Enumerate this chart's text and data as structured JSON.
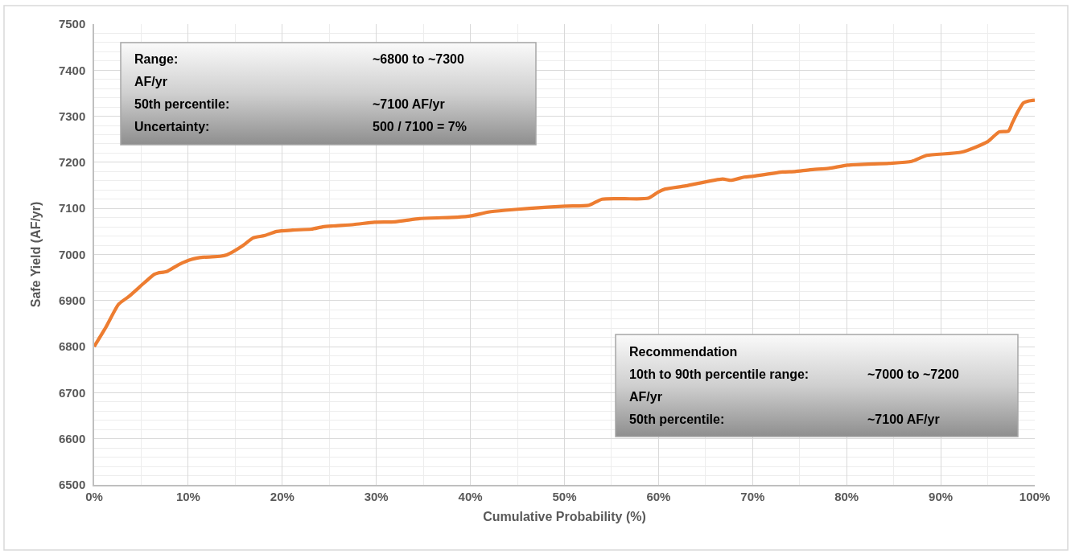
{
  "chart_data": {
    "type": "line",
    "xlabel": "Cumulative Probability (%)",
    "ylabel": "Safe Yield (AF/yr)",
    "x": [
      0,
      1.3,
      2.6,
      3.7,
      5.3,
      6.4,
      6.8,
      7.7,
      9,
      10.3,
      11.6,
      13.4,
      14.1,
      15.8,
      16.9,
      18.1,
      19.4,
      21.1,
      23.1,
      24.3,
      25.4,
      27.6,
      29.8,
      32,
      34.6,
      38.6,
      40.1,
      41.9,
      43.7,
      46.3,
      50.1,
      52.6,
      54,
      56.3,
      58.9,
      60,
      60.7,
      62.9,
      66.8,
      67.7,
      69.1,
      70.1,
      73.2,
      74.5,
      76.1,
      78.1,
      80.1,
      84.5,
      86.9,
      88.5,
      92.2,
      95,
      96.2,
      97.2,
      97.6,
      98.2,
      98.8,
      99.3,
      100
    ],
    "series": [
      {
        "color": "#ed7d31",
        "values": [
          6800,
          6844,
          6892,
          6909,
          6938,
          6957,
          6960,
          6963,
          6978,
          6989,
          6994,
          6996,
          6999,
          7019,
          7036,
          7041,
          7050,
          7053,
          7055,
          7060,
          7062,
          7065,
          7070,
          7071,
          7078,
          7081,
          7084,
          7092,
          7096,
          7100,
          7105,
          7107,
          7120,
          7121,
          7122,
          7136,
          7142,
          7149,
          7164,
          7161,
          7168,
          7170,
          7179,
          7180,
          7184,
          7187,
          7194,
          7198,
          7202,
          7215,
          7222,
          7245,
          7266,
          7268,
          7285,
          7310,
          7329,
          7333,
          7335
        ]
      }
    ],
    "xlim": [
      0,
      100
    ],
    "xticks": [
      {
        "value": 0,
        "label": "0%"
      },
      {
        "value": 10,
        "label": "10%"
      },
      {
        "value": 20,
        "label": "20%"
      },
      {
        "value": 30,
        "label": "30%"
      },
      {
        "value": 40,
        "label": "40%"
      },
      {
        "value": 50,
        "label": "50%"
      },
      {
        "value": 60,
        "label": "60%"
      },
      {
        "value": 70,
        "label": "70%"
      },
      {
        "value": 80,
        "label": "80%"
      },
      {
        "value": 90,
        "label": "90%"
      },
      {
        "value": 100,
        "label": "100%"
      }
    ],
    "ylim": [
      6500,
      7500
    ],
    "yticks": [
      6500,
      6600,
      6700,
      6800,
      6900,
      7000,
      7100,
      7200,
      7300,
      7400,
      7500
    ],
    "grid": true,
    "marker": "none",
    "line_style": "solid",
    "annotations": [
      "Range:\t~6800 to ~7300\nAF/yr\n50th percentile:\t~7100 AF/yr\nUncertainty:\t500 / 7100 = 7%",
      "Recommendation\n10th to 90th percentile range:\t~7000 to ~7200\nAF/yr\n50th percentile:\t~7100 AF/yr"
    ]
  }
}
